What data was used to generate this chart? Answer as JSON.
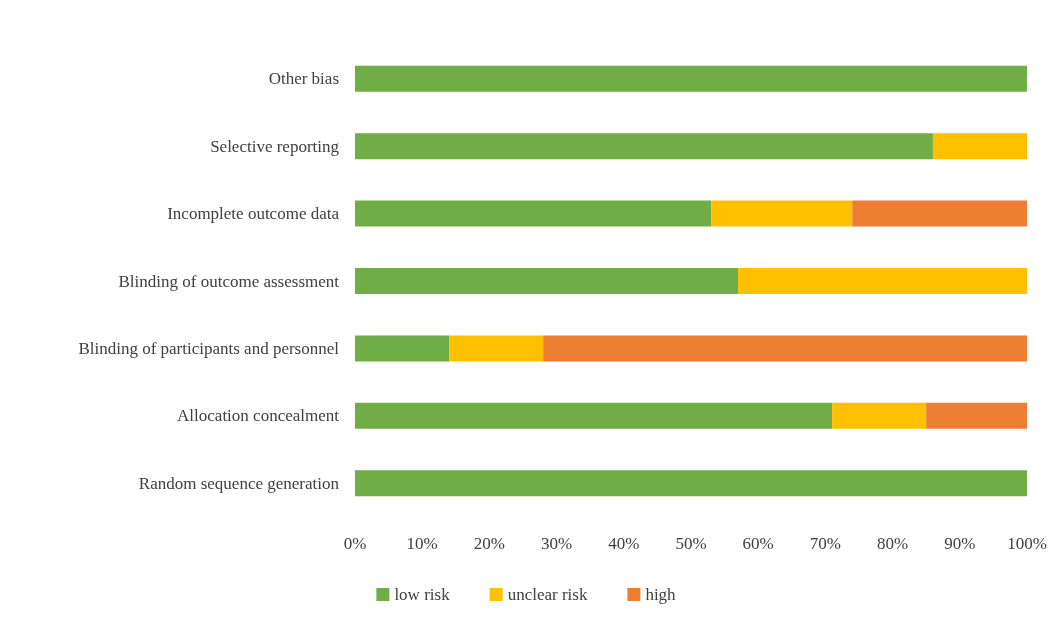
{
  "chart_data": {
    "type": "bar",
    "orientation": "horizontal",
    "stacked": true,
    "categories": [
      "Other bias",
      "Selective reporting",
      "Incomplete outcome data",
      "Blinding of outcome assessment",
      "Blinding of participants and personnel",
      "Allocation concealment",
      "Random sequence generation"
    ],
    "series": [
      {
        "name": "low risk",
        "color": "#70ad47",
        "values": [
          100,
          86,
          53,
          57,
          14,
          71,
          100
        ]
      },
      {
        "name": "unclear risk",
        "color": "#ffc000",
        "values": [
          0,
          14,
          21,
          43,
          14,
          14,
          0
        ]
      },
      {
        "name": "high",
        "color": "#ed7d31",
        "values": [
          0,
          0,
          26,
          0,
          72,
          15,
          0
        ]
      }
    ],
    "xlim": [
      0,
      100
    ],
    "xticks": [
      {
        "value": 0,
        "label": "0%"
      },
      {
        "value": 10,
        "label": "10%"
      },
      {
        "value": 20,
        "label": "20%"
      },
      {
        "value": 30,
        "label": "30%"
      },
      {
        "value": 40,
        "label": "40%"
      },
      {
        "value": 50,
        "label": "50%"
      },
      {
        "value": 60,
        "label": "60%"
      },
      {
        "value": 70,
        "label": "70%"
      },
      {
        "value": 80,
        "label": "80%"
      },
      {
        "value": 90,
        "label": "90%"
      },
      {
        "value": 100,
        "label": "100%"
      }
    ],
    "grid": false,
    "legend": "bottom"
  }
}
